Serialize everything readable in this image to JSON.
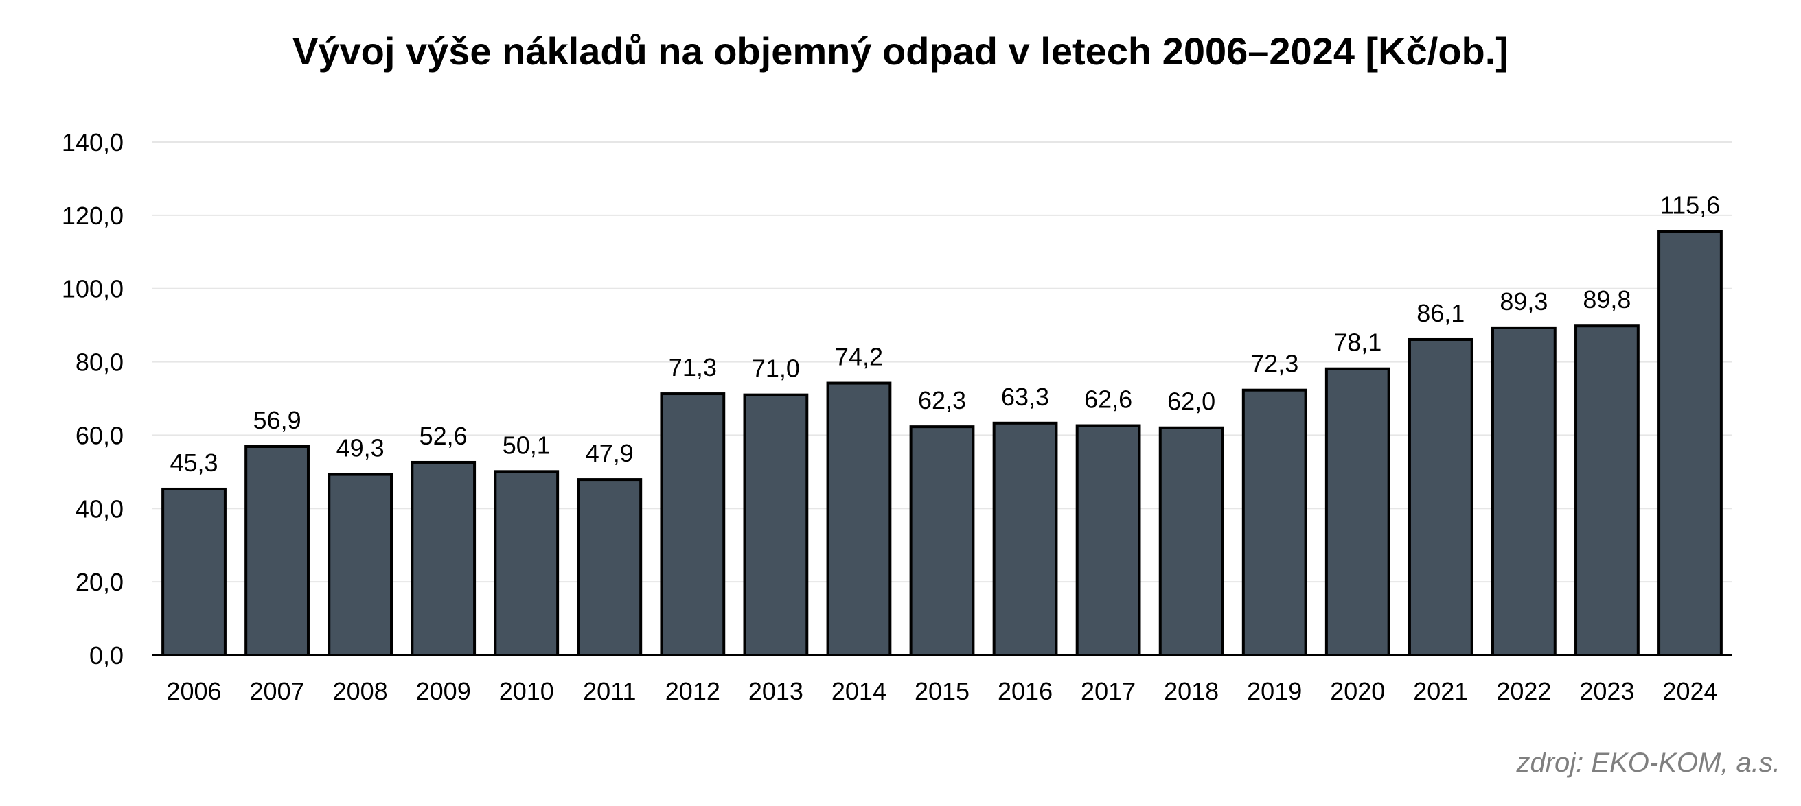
{
  "chart_data": {
    "type": "bar",
    "title": "Vývoj výše nákladů na objemný odpad v letech 2006–2024 [Kč/ob.]",
    "xlabel": "",
    "ylabel": "",
    "categories": [
      "2006",
      "2007",
      "2008",
      "2009",
      "2010",
      "2011",
      "2012",
      "2013",
      "2014",
      "2015",
      "2016",
      "2017",
      "2018",
      "2019",
      "2020",
      "2021",
      "2022",
      "2023",
      "2024"
    ],
    "values": [
      45.3,
      56.9,
      49.3,
      52.6,
      50.1,
      47.9,
      71.3,
      71.0,
      74.2,
      62.3,
      63.3,
      62.6,
      62.0,
      72.3,
      78.1,
      86.1,
      89.3,
      89.8,
      115.6
    ],
    "value_labels": [
      "45,3",
      "56,9",
      "49,3",
      "52,6",
      "50,1",
      "47,9",
      "71,3",
      "71,0",
      "74,2",
      "62,3",
      "63,3",
      "62,6",
      "62,0",
      "72,3",
      "78,1",
      "86,1",
      "89,3",
      "89,8",
      "115,6"
    ],
    "ylim": [
      0,
      140
    ],
    "y_ticks": [
      0,
      20,
      40,
      60,
      80,
      100,
      120,
      140
    ],
    "y_tick_labels": [
      "0,0",
      "20,0",
      "40,0",
      "60,0",
      "80,0",
      "100,0",
      "120,0",
      "140,0"
    ],
    "grid": true,
    "legend": false,
    "bar_color": "#45525e",
    "bar_outline_color": "#000000",
    "grid_color": "#e6e6e6"
  },
  "source": "zdroj: EKO-KOM, a.s."
}
